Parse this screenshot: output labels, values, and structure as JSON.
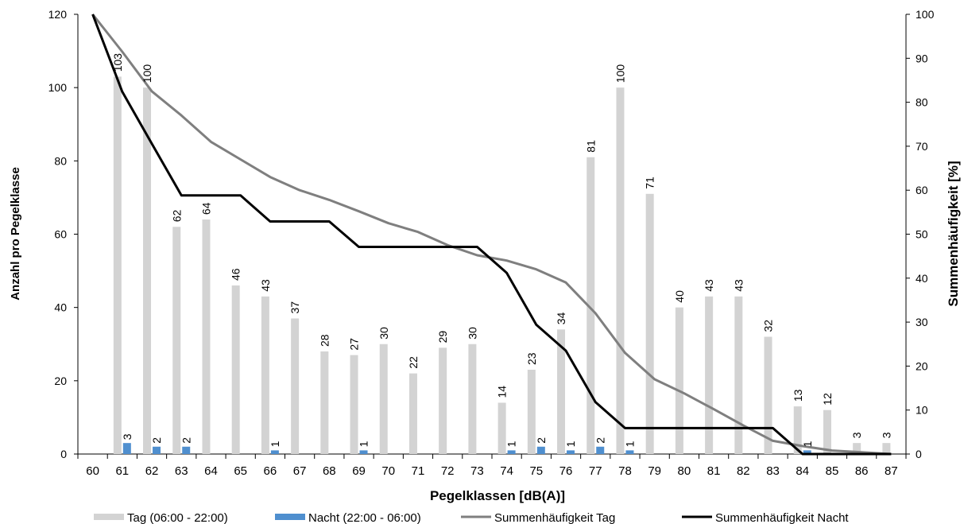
{
  "chart_data": {
    "type": "bar+line",
    "xlabel": "Pegelklassen [dB(A)]",
    "ylabel": "Anzahl pro Pegelklasse",
    "y2label": "Summenhäufigkeit [%]",
    "categories": [
      "60",
      "61",
      "62",
      "63",
      "64",
      "65",
      "66",
      "67",
      "68",
      "69",
      "70",
      "71",
      "72",
      "73",
      "74",
      "75",
      "76",
      "77",
      "78",
      "79",
      "80",
      "81",
      "82",
      "83",
      "84",
      "85",
      "86",
      "87"
    ],
    "ylim": [
      0,
      120
    ],
    "y_ticks": [
      0,
      20,
      40,
      60,
      80,
      100,
      120
    ],
    "y2lim": [
      0,
      100
    ],
    "y2_ticks": [
      0,
      10,
      20,
      30,
      40,
      50,
      60,
      70,
      80,
      90,
      100
    ],
    "grid": false,
    "legend_position": "bottom",
    "series": [
      {
        "name": "Tag (06:00 - 22:00)",
        "kind": "bar",
        "axis": "left",
        "color": "#d3d3d3",
        "values": [
          null,
          103,
          100,
          62,
          64,
          46,
          43,
          37,
          28,
          27,
          30,
          22,
          29,
          30,
          14,
          23,
          34,
          81,
          100,
          71,
          40,
          43,
          43,
          32,
          13,
          12,
          3,
          3
        ]
      },
      {
        "name": "Nacht (22:00 - 06:00)",
        "kind": "bar",
        "axis": "left",
        "color": "#4f8fcf",
        "values": [
          null,
          3,
          2,
          2,
          null,
          null,
          1,
          null,
          null,
          1,
          null,
          null,
          null,
          null,
          1,
          2,
          1,
          2,
          1,
          null,
          null,
          null,
          null,
          null,
          1,
          null,
          null,
          null
        ]
      },
      {
        "name": "Summenhäufigkeit Tag",
        "kind": "line",
        "axis": "right",
        "color": "#7f7f7f",
        "values": [
          100,
          91.5,
          82.5,
          77,
          71,
          67,
          63,
          60,
          57.8,
          55.2,
          52.5,
          50.5,
          47.5,
          45.2,
          44,
          42,
          39,
          32,
          23,
          17,
          13.8,
          10.2,
          6.5,
          3,
          1.8,
          0.8,
          0.4,
          0
        ]
      },
      {
        "name": "Summenhäufigkeit Nacht",
        "kind": "line",
        "axis": "right",
        "color": "#000000",
        "values": [
          100,
          82.4,
          70.6,
          58.8,
          58.8,
          58.8,
          52.9,
          52.9,
          52.9,
          47.1,
          47.1,
          47.1,
          47.1,
          47.1,
          41.2,
          29.4,
          23.5,
          11.8,
          5.9,
          5.9,
          5.9,
          5.9,
          5.9,
          5.9,
          0,
          0,
          0,
          0
        ]
      }
    ]
  }
}
